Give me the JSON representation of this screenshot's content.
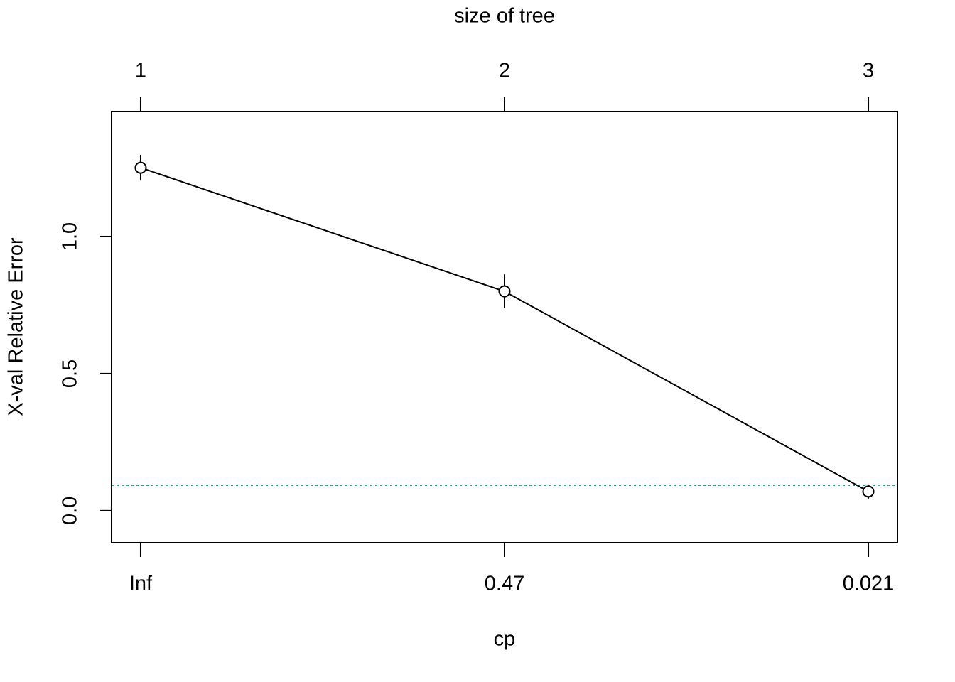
{
  "chart_data": {
    "type": "line",
    "x_label": "cp",
    "y_label": "X-val Relative Error",
    "categories": [
      "Inf",
      "0.47",
      "0.021"
    ],
    "top_axis": {
      "label": "size of tree",
      "ticks": [
        1,
        2,
        3
      ]
    },
    "series": [
      {
        "values": [
          1.251,
          0.8,
          0.07
        ],
        "errors": [
          0.047,
          0.062,
          0.026
        ],
        "color": "#000000"
      }
    ],
    "reference_line": {
      "value": 0.093,
      "color": "#2e9c8a",
      "style": "dotted"
    },
    "ylim": [
      -0.117,
      1.456
    ],
    "yticks": [
      {
        "value": 0,
        "label": "0.0"
      },
      0.5,
      {
        "value": 1,
        "label": "1.0"
      }
    ]
  }
}
